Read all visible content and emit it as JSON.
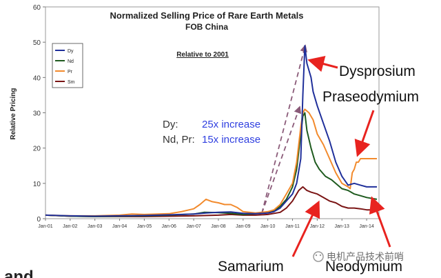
{
  "chart_data": {
    "type": "line",
    "title": "Normalized Selling Price of Rare Earth Metals",
    "subtitle": "FOB China",
    "ylabel": "Relative Pricing",
    "xlabel": "",
    "ylim": [
      0,
      60
    ],
    "yticks": [
      0,
      10,
      20,
      30,
      40,
      50,
      60
    ],
    "xlim": [
      "2001-01",
      "2014-07"
    ],
    "xticks": [
      "Jan-01",
      "Jan-02",
      "Jan-03",
      "Jan-04",
      "Jan-05",
      "Jan-06",
      "Jan-07",
      "Jan-08",
      "Jan-09",
      "Jan-10",
      "Jan-11",
      "Jan-12",
      "Jan-13",
      "Jan-14"
    ],
    "grid": false,
    "legend_position": "top-left",
    "note": "Relative to 2001",
    "annotation": {
      "rows": [
        {
          "label": "Dy:",
          "value": "25x increase"
        },
        {
          "label": "Nd, Pr:",
          "value": "15x increase"
        }
      ]
    },
    "callouts": {
      "dy": "Dysprosium",
      "pr": "Praseodymium",
      "sm": "Samarium",
      "nd": "Neodymium"
    },
    "series": [
      {
        "name": "Dy",
        "color": "#1f2f9a",
        "points": [
          [
            "2001-01",
            1.0
          ],
          [
            "2002-01",
            0.8
          ],
          [
            "2003-01",
            0.7
          ],
          [
            "2004-01",
            0.8
          ],
          [
            "2005-01",
            0.9
          ],
          [
            "2006-01",
            1.1
          ],
          [
            "2007-01",
            1.3
          ],
          [
            "2007-07",
            1.6
          ],
          [
            "2008-01",
            1.8
          ],
          [
            "2008-07",
            1.9
          ],
          [
            "2009-01",
            1.5
          ],
          [
            "2009-07",
            1.4
          ],
          [
            "2010-01",
            1.6
          ],
          [
            "2010-04",
            2.0
          ],
          [
            "2010-07",
            3.0
          ],
          [
            "2010-10",
            5.0
          ],
          [
            "2011-01",
            7.0
          ],
          [
            "2011-03",
            10.0
          ],
          [
            "2011-05",
            17.0
          ],
          [
            "2011-06",
            35.0
          ],
          [
            "2011-07",
            49.0
          ],
          [
            "2011-08",
            44.0
          ],
          [
            "2011-09",
            42.0
          ],
          [
            "2011-10",
            40.0
          ],
          [
            "2011-11",
            36.0
          ],
          [
            "2012-01",
            32.0
          ],
          [
            "2012-04",
            27.0
          ],
          [
            "2012-07",
            22.0
          ],
          [
            "2012-10",
            16.0
          ],
          [
            "2013-01",
            12.0
          ],
          [
            "2013-04",
            9.5
          ],
          [
            "2013-07",
            10.0
          ],
          [
            "2013-10",
            9.5
          ],
          [
            "2014-01",
            9.0
          ],
          [
            "2014-06",
            9.0
          ]
        ]
      },
      {
        "name": "Nd",
        "color": "#1e5a1e",
        "points": [
          [
            "2001-01",
            1.0
          ],
          [
            "2002-01",
            0.7
          ],
          [
            "2003-01",
            0.6
          ],
          [
            "2004-01",
            0.7
          ],
          [
            "2005-01",
            0.8
          ],
          [
            "2006-01",
            1.0
          ],
          [
            "2007-01",
            1.3
          ],
          [
            "2007-06",
            1.8
          ],
          [
            "2008-01",
            1.7
          ],
          [
            "2008-07",
            1.5
          ],
          [
            "2009-01",
            1.2
          ],
          [
            "2009-07",
            1.4
          ],
          [
            "2010-01",
            1.7
          ],
          [
            "2010-04",
            2.2
          ],
          [
            "2010-07",
            3.5
          ],
          [
            "2010-10",
            5.5
          ],
          [
            "2011-01",
            9.0
          ],
          [
            "2011-03",
            14.0
          ],
          [
            "2011-05",
            24.0
          ],
          [
            "2011-06",
            29.0
          ],
          [
            "2011-07",
            30.0
          ],
          [
            "2011-08",
            25.0
          ],
          [
            "2011-10",
            20.0
          ],
          [
            "2011-12",
            16.0
          ],
          [
            "2012-02",
            14.0
          ],
          [
            "2012-05",
            12.0
          ],
          [
            "2012-08",
            11.0
          ],
          [
            "2012-11",
            9.5
          ],
          [
            "2013-01",
            8.5
          ],
          [
            "2013-04",
            8.0
          ],
          [
            "2013-07",
            7.0
          ],
          [
            "2013-10",
            6.5
          ],
          [
            "2014-01",
            6.0
          ],
          [
            "2014-06",
            5.5
          ]
        ]
      },
      {
        "name": "Pr",
        "color": "#f28a2c",
        "points": [
          [
            "2001-01",
            1.0
          ],
          [
            "2002-01",
            0.8
          ],
          [
            "2003-01",
            0.8
          ],
          [
            "2004-01",
            1.0
          ],
          [
            "2004-07",
            1.3
          ],
          [
            "2005-01",
            1.2
          ],
          [
            "2006-01",
            1.4
          ],
          [
            "2006-07",
            2.0
          ],
          [
            "2007-01",
            2.8
          ],
          [
            "2007-04",
            4.0
          ],
          [
            "2007-07",
            5.5
          ],
          [
            "2007-10",
            4.8
          ],
          [
            "2008-01",
            4.5
          ],
          [
            "2008-04",
            4.0
          ],
          [
            "2008-07",
            4.0
          ],
          [
            "2008-10",
            3.2
          ],
          [
            "2009-01",
            2.0
          ],
          [
            "2009-07",
            1.6
          ],
          [
            "2010-01",
            2.0
          ],
          [
            "2010-04",
            2.5
          ],
          [
            "2010-07",
            4.0
          ],
          [
            "2010-10",
            7.0
          ],
          [
            "2011-01",
            10.0
          ],
          [
            "2011-03",
            16.0
          ],
          [
            "2011-05",
            26.0
          ],
          [
            "2011-06",
            30.0
          ],
          [
            "2011-07",
            31.0
          ],
          [
            "2011-09",
            30.0
          ],
          [
            "2011-11",
            28.0
          ],
          [
            "2012-01",
            24.0
          ],
          [
            "2012-04",
            21.0
          ],
          [
            "2012-07",
            17.0
          ],
          [
            "2012-10",
            13.0
          ],
          [
            "2013-01",
            10.0
          ],
          [
            "2013-04",
            9.0
          ],
          [
            "2013-05",
            8.5
          ],
          [
            "2013-06",
            13.0
          ],
          [
            "2013-07",
            14.0
          ],
          [
            "2013-08",
            16.0
          ],
          [
            "2013-09",
            16.0
          ],
          [
            "2013-10",
            17.0
          ],
          [
            "2014-01",
            17.0
          ],
          [
            "2014-06",
            17.0
          ]
        ]
      },
      {
        "name": "Sm",
        "color": "#7a1414",
        "points": [
          [
            "2001-01",
            1.0
          ],
          [
            "2002-01",
            0.7
          ],
          [
            "2003-01",
            0.6
          ],
          [
            "2004-01",
            0.6
          ],
          [
            "2005-01",
            0.6
          ],
          [
            "2006-01",
            0.7
          ],
          [
            "2007-01",
            0.8
          ],
          [
            "2008-01",
            1.0
          ],
          [
            "2008-07",
            1.2
          ],
          [
            "2009-01",
            1.0
          ],
          [
            "2009-07",
            1.0
          ],
          [
            "2010-01",
            1.2
          ],
          [
            "2010-07",
            1.8
          ],
          [
            "2010-10",
            3.0
          ],
          [
            "2011-01",
            5.0
          ],
          [
            "2011-04",
            8.0
          ],
          [
            "2011-06",
            9.0
          ],
          [
            "2011-08",
            8.0
          ],
          [
            "2011-10",
            7.5
          ],
          [
            "2012-01",
            7.0
          ],
          [
            "2012-04",
            6.0
          ],
          [
            "2012-07",
            5.0
          ],
          [
            "2012-10",
            4.5
          ],
          [
            "2013-01",
            3.5
          ],
          [
            "2013-04",
            3.0
          ],
          [
            "2013-07",
            3.0
          ],
          [
            "2013-10",
            2.8
          ],
          [
            "2014-01",
            2.5
          ],
          [
            "2014-06",
            2.5
          ]
        ]
      }
    ]
  },
  "watermark": {
    "text": "电机产品技术前哨"
  },
  "bottom_text": {
    "text": "and"
  }
}
